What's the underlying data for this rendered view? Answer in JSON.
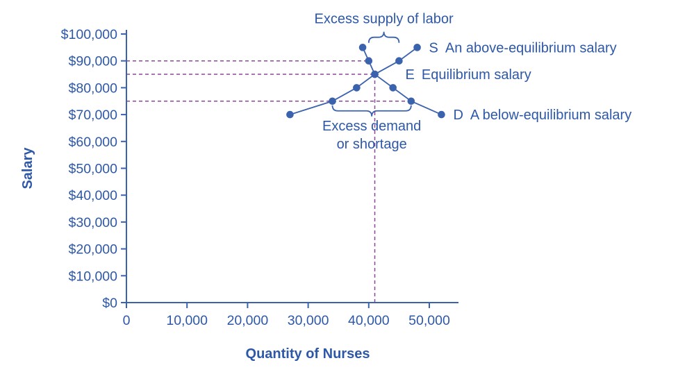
{
  "chart_data": {
    "type": "line",
    "xlabel": "Quantity of Nurses",
    "ylabel": "Salary",
    "xlim": [
      0,
      50000
    ],
    "ylim": [
      0,
      100000
    ],
    "grid": false,
    "x_ticks": [
      {
        "value": 0,
        "label": "0"
      },
      {
        "value": 10000,
        "label": "10,000"
      },
      {
        "value": 20000,
        "label": "20,000"
      },
      {
        "value": 30000,
        "label": "30,000"
      },
      {
        "value": 40000,
        "label": "40,000"
      },
      {
        "value": 50000,
        "label": "50,000"
      }
    ],
    "y_ticks": [
      {
        "value": 0,
        "label": "$0"
      },
      {
        "value": 10000,
        "label": "$10,000"
      },
      {
        "value": 20000,
        "label": "$20,000"
      },
      {
        "value": 30000,
        "label": "$30,000"
      },
      {
        "value": 40000,
        "label": "$40,000"
      },
      {
        "value": 50000,
        "label": "$50,000"
      },
      {
        "value": 60000,
        "label": "$60,000"
      },
      {
        "value": 70000,
        "label": "$70,000"
      },
      {
        "value": 80000,
        "label": "$80,000"
      },
      {
        "value": 90000,
        "label": "$90,000"
      },
      {
        "value": 100000,
        "label": "$100,000"
      }
    ],
    "series": [
      {
        "name": "supply",
        "points": [
          [
            27000,
            70000
          ],
          [
            34000,
            75000
          ],
          [
            38000,
            80000
          ],
          [
            41000,
            85000
          ],
          [
            45000,
            90000
          ],
          [
            48000,
            95000
          ]
        ]
      },
      {
        "name": "demand",
        "points": [
          [
            39000,
            95000
          ],
          [
            40000,
            90000
          ],
          [
            41000,
            85000
          ],
          [
            44000,
            80000
          ],
          [
            47000,
            75000
          ],
          [
            52000,
            70000
          ]
        ]
      }
    ],
    "equilibrium": {
      "quantity": 41000,
      "salary": 85000
    },
    "dashed_guides": [
      {
        "orientation": "h",
        "y": 90000,
        "x_from": 0,
        "x_to": 40000
      },
      {
        "orientation": "h",
        "y": 85000,
        "x_from": 0,
        "x_to": 41000
      },
      {
        "orientation": "h",
        "y": 75000,
        "x_from": 0,
        "x_to": 47000
      },
      {
        "orientation": "v",
        "x": 41000,
        "y_from": 0,
        "y_to": 85000
      }
    ],
    "annotations": [
      {
        "id": "S",
        "letter": "S",
        "text": "An above-equilibrium salary",
        "at": [
          48000,
          95000
        ]
      },
      {
        "id": "E",
        "letter": "E",
        "text": "Equilibrium salary",
        "at": [
          41000,
          85000
        ]
      },
      {
        "id": "D",
        "letter": "D",
        "text": "A below-equilibrium salary",
        "at": [
          52000,
          70000
        ]
      }
    ],
    "braces": [
      {
        "id": "excess-supply",
        "label_lines": [
          "Excess supply of labor"
        ],
        "x_from": 40000,
        "x_to": 45000,
        "at_y": 90000,
        "direction": "up"
      },
      {
        "id": "excess-demand",
        "label_lines": [
          "Excess demand",
          "or shortage"
        ],
        "x_from": 34000,
        "x_to": 47000,
        "at_y": 75000,
        "direction": "down"
      }
    ],
    "colors": {
      "line_blue": "#3a62ad",
      "text_blue": "#2d58a8",
      "dashed_purple": "#8c4799"
    }
  }
}
